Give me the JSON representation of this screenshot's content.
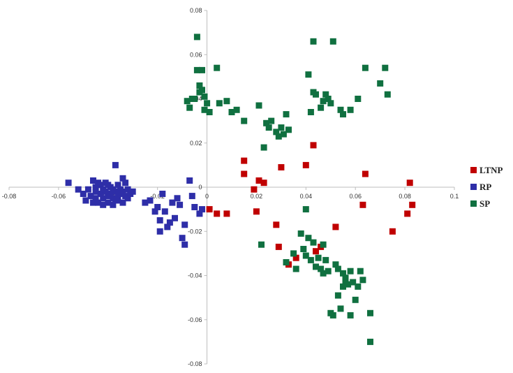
{
  "chart_data": {
    "type": "scatter",
    "title": "",
    "xlabel": "",
    "ylabel": "",
    "xlim": [
      -0.08,
      0.1
    ],
    "ylim": [
      -0.08,
      0.08
    ],
    "x_ticks": [
      "-0.08",
      "-0.06",
      "-0.04",
      "-0.02",
      "0",
      "0.02",
      "0.04",
      "0.06",
      "0.08",
      "0.1"
    ],
    "x_tick_values": [
      -0.08,
      -0.06,
      -0.04,
      -0.02,
      0,
      0.02,
      0.04,
      0.06,
      0.08,
      0.1
    ],
    "y_ticks": [
      "0.08",
      "0.06",
      "0.04",
      "0.02",
      "0",
      "-0.02",
      "-0.04",
      "-0.06",
      "-0.08"
    ],
    "y_tick_values": [
      0.08,
      0.06,
      0.04,
      0.02,
      0,
      -0.02,
      -0.04,
      -0.06,
      -0.08
    ],
    "grid": false,
    "legend_position": "right",
    "series": [
      {
        "name": "LTNP",
        "color": "#c00000",
        "points": [
          [
            0.015,
            0.012
          ],
          [
            0.015,
            0.006
          ],
          [
            0.021,
            0.003
          ],
          [
            0.023,
            0.002
          ],
          [
            0.019,
            -0.001
          ],
          [
            0.03,
            0.009
          ],
          [
            0.04,
            0.01
          ],
          [
            0.043,
            0.019
          ],
          [
            0.064,
            0.006
          ],
          [
            0.082,
            0.002
          ],
          [
            0.063,
            -0.008
          ],
          [
            0.083,
            -0.008
          ],
          [
            0.081,
            -0.012
          ],
          [
            0.075,
            -0.02
          ],
          [
            0.001,
            -0.01
          ],
          [
            0.004,
            -0.012
          ],
          [
            0.008,
            -0.012
          ],
          [
            0.02,
            -0.011
          ],
          [
            0.028,
            -0.017
          ],
          [
            0.029,
            -0.027
          ],
          [
            0.033,
            -0.035
          ],
          [
            0.036,
            -0.032
          ],
          [
            0.044,
            -0.029
          ],
          [
            0.046,
            -0.027
          ],
          [
            0.052,
            -0.018
          ]
        ]
      },
      {
        "name": "RP",
        "color": "#2e2ea8",
        "points": [
          [
            -0.056,
            0.002
          ],
          [
            -0.052,
            -0.001
          ],
          [
            -0.05,
            -0.003
          ],
          [
            -0.049,
            -0.006
          ],
          [
            -0.048,
            -0.001
          ],
          [
            -0.047,
            -0.004
          ],
          [
            -0.046,
            0.003
          ],
          [
            -0.045,
            0.0
          ],
          [
            -0.045,
            -0.002
          ],
          [
            -0.045,
            -0.005
          ],
          [
            -0.044,
            -0.007
          ],
          [
            -0.043,
            0.001
          ],
          [
            -0.043,
            -0.003
          ],
          [
            -0.042,
            -0.001
          ],
          [
            -0.042,
            -0.005
          ],
          [
            -0.041,
            0.002
          ],
          [
            -0.041,
            -0.002
          ],
          [
            -0.04,
            -0.004
          ],
          [
            -0.04,
            -0.007
          ],
          [
            -0.039,
            0.0
          ],
          [
            -0.039,
            -0.003
          ],
          [
            -0.038,
            -0.001
          ],
          [
            -0.038,
            -0.005
          ],
          [
            -0.037,
            -0.002
          ],
          [
            -0.037,
            -0.006
          ],
          [
            -0.036,
            0.001
          ],
          [
            -0.036,
            -0.004
          ],
          [
            -0.035,
            -0.001
          ],
          [
            -0.035,
            -0.003
          ],
          [
            -0.034,
            -0.007
          ],
          [
            -0.034,
            -0.002
          ],
          [
            -0.033,
            0.002
          ],
          [
            -0.033,
            -0.004
          ],
          [
            -0.032,
            -0.001
          ],
          [
            -0.032,
            -0.005
          ],
          [
            -0.031,
            -0.003
          ],
          [
            -0.03,
            -0.002
          ],
          [
            -0.038,
            -0.008
          ],
          [
            -0.042,
            -0.008
          ],
          [
            -0.046,
            -0.007
          ],
          [
            -0.044,
            0.002
          ],
          [
            -0.04,
            0.001
          ],
          [
            -0.036,
            -0.006
          ],
          [
            -0.034,
            0.004
          ],
          [
            -0.037,
            0.01
          ],
          [
            -0.025,
            -0.007
          ],
          [
            -0.023,
            -0.006
          ],
          [
            -0.021,
            -0.011
          ],
          [
            -0.02,
            -0.009
          ],
          [
            -0.019,
            -0.015
          ],
          [
            -0.019,
            -0.02
          ],
          [
            -0.018,
            -0.003
          ],
          [
            -0.017,
            -0.011
          ],
          [
            -0.016,
            -0.018
          ],
          [
            -0.015,
            -0.016
          ],
          [
            -0.014,
            -0.007
          ],
          [
            -0.013,
            -0.014
          ],
          [
            -0.012,
            -0.005
          ],
          [
            -0.011,
            -0.008
          ],
          [
            -0.01,
            -0.023
          ],
          [
            -0.009,
            -0.026
          ],
          [
            -0.009,
            -0.017
          ],
          [
            -0.007,
            0.003
          ],
          [
            -0.006,
            -0.004
          ],
          [
            -0.005,
            -0.009
          ],
          [
            -0.003,
            -0.012
          ],
          [
            -0.002,
            -0.01
          ]
        ]
      },
      {
        "name": "SP",
        "color": "#107040",
        "points": [
          [
            -0.004,
            0.068
          ],
          [
            -0.004,
            0.053
          ],
          [
            -0.003,
            0.046
          ],
          [
            -0.003,
            0.043
          ],
          [
            -0.002,
            0.053
          ],
          [
            -0.002,
            0.044
          ],
          [
            -0.001,
            0.041
          ],
          [
            -0.001,
            0.035
          ],
          [
            0.0,
            0.038
          ],
          [
            0.001,
            0.034
          ],
          [
            -0.008,
            0.039
          ],
          [
            -0.007,
            0.036
          ],
          [
            -0.006,
            0.04
          ],
          [
            -0.005,
            0.04
          ],
          [
            0.004,
            0.054
          ],
          [
            0.005,
            0.038
          ],
          [
            0.008,
            0.039
          ],
          [
            0.01,
            0.034
          ],
          [
            0.012,
            0.035
          ],
          [
            0.015,
            0.03
          ],
          [
            0.021,
            0.037
          ],
          [
            0.024,
            0.029
          ],
          [
            0.025,
            0.027
          ],
          [
            0.026,
            0.03
          ],
          [
            0.028,
            0.025
          ],
          [
            0.029,
            0.023
          ],
          [
            0.03,
            0.027
          ],
          [
            0.031,
            0.024
          ],
          [
            0.032,
            0.033
          ],
          [
            0.033,
            0.026
          ],
          [
            0.023,
            0.018
          ],
          [
            0.041,
            0.051
          ],
          [
            0.043,
            0.066
          ],
          [
            0.043,
            0.043
          ],
          [
            0.044,
            0.042
          ],
          [
            0.042,
            0.034
          ],
          [
            0.046,
            0.036
          ],
          [
            0.047,
            0.039
          ],
          [
            0.048,
            0.042
          ],
          [
            0.049,
            0.04
          ],
          [
            0.05,
            0.038
          ],
          [
            0.051,
            0.066
          ],
          [
            0.054,
            0.035
          ],
          [
            0.055,
            0.033
          ],
          [
            0.058,
            0.035
          ],
          [
            0.061,
            0.04
          ],
          [
            0.064,
            0.054
          ],
          [
            0.07,
            0.047
          ],
          [
            0.072,
            0.054
          ],
          [
            0.073,
            0.042
          ],
          [
            0.04,
            -0.01
          ],
          [
            0.022,
            -0.026
          ],
          [
            0.032,
            -0.034
          ],
          [
            0.035,
            -0.03
          ],
          [
            0.036,
            -0.037
          ],
          [
            0.038,
            -0.021
          ],
          [
            0.039,
            -0.028
          ],
          [
            0.04,
            -0.031
          ],
          [
            0.041,
            -0.023
          ],
          [
            0.042,
            -0.033
          ],
          [
            0.043,
            -0.025
          ],
          [
            0.044,
            -0.036
          ],
          [
            0.045,
            -0.032
          ],
          [
            0.046,
            -0.037
          ],
          [
            0.047,
            -0.039
          ],
          [
            0.047,
            -0.026
          ],
          [
            0.048,
            -0.033
          ],
          [
            0.049,
            -0.038
          ],
          [
            0.05,
            -0.057
          ],
          [
            0.051,
            -0.058
          ],
          [
            0.052,
            -0.035
          ],
          [
            0.053,
            -0.037
          ],
          [
            0.053,
            -0.049
          ],
          [
            0.054,
            -0.055
          ],
          [
            0.055,
            -0.045
          ],
          [
            0.055,
            -0.039
          ],
          [
            0.056,
            -0.041
          ],
          [
            0.056,
            -0.043
          ],
          [
            0.057,
            -0.044
          ],
          [
            0.058,
            -0.038
          ],
          [
            0.058,
            -0.058
          ],
          [
            0.059,
            -0.043
          ],
          [
            0.06,
            -0.051
          ],
          [
            0.061,
            -0.045
          ],
          [
            0.062,
            -0.038
          ],
          [
            0.063,
            -0.042
          ],
          [
            0.066,
            -0.057
          ],
          [
            0.066,
            -0.07
          ]
        ]
      }
    ]
  }
}
